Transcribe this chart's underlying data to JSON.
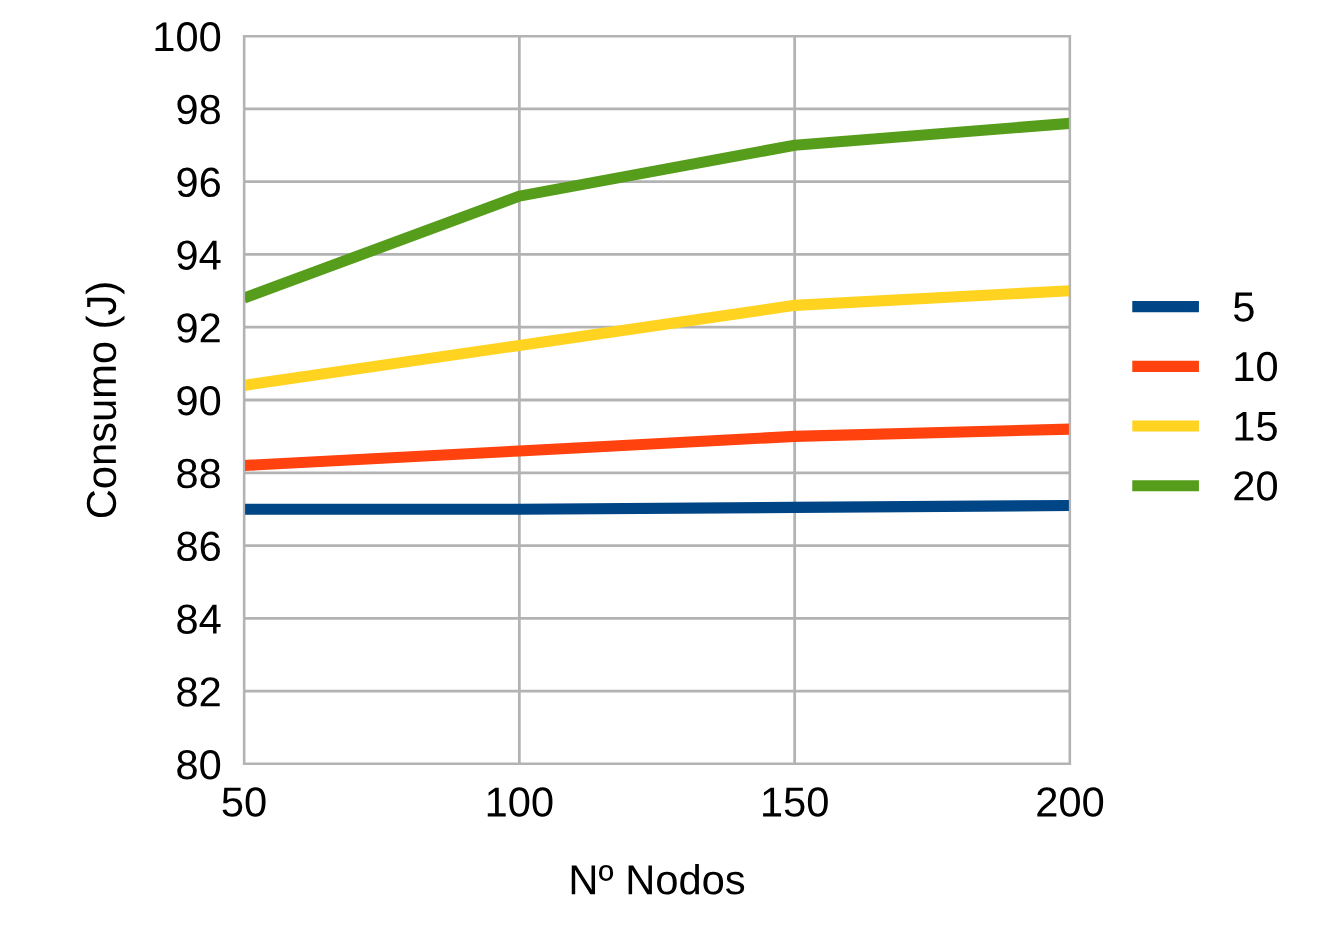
{
  "chart_data": {
    "type": "line",
    "xlabel": "Nº Nodos",
    "ylabel": "Consumo (J)",
    "x": [
      50,
      100,
      150,
      200
    ],
    "series": [
      {
        "name": "5",
        "color": "#004586",
        "values": [
          87.0,
          87.0,
          87.05,
          87.1
        ]
      },
      {
        "name": "10",
        "color": "#ff420e",
        "values": [
          88.2,
          88.6,
          89.0,
          89.2
        ]
      },
      {
        "name": "15",
        "color": "#ffd320",
        "values": [
          90.4,
          91.5,
          92.6,
          93.0
        ]
      },
      {
        "name": "20",
        "color": "#579d1c",
        "values": [
          92.8,
          95.6,
          97.0,
          97.6
        ]
      }
    ],
    "xlim": [
      50,
      200
    ],
    "xticks": [
      50,
      100,
      150,
      200
    ],
    "ylim": [
      80,
      100
    ],
    "yticks": [
      80,
      82,
      84,
      86,
      88,
      90,
      92,
      94,
      96,
      98,
      100
    ],
    "grid": true,
    "legend": "right",
    "marker": "none",
    "line_style": "solid"
  }
}
